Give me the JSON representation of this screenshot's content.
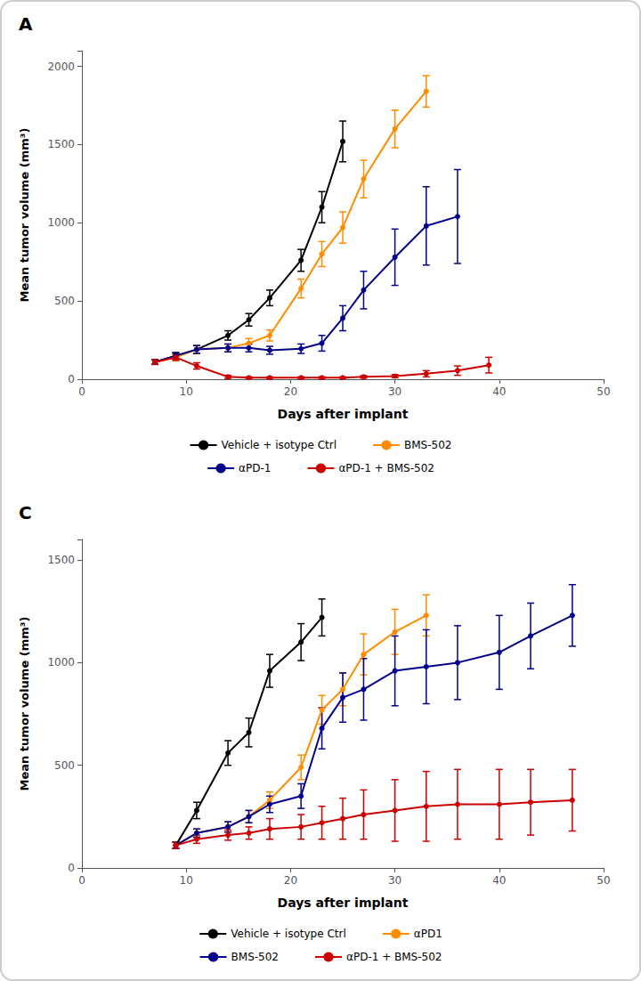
{
  "chart_data": [
    {
      "type": "line",
      "title": "A",
      "xlabel": "Days after implant",
      "ylabel": "Mean tumor volume (mm³)",
      "xlim": [
        0,
        50
      ],
      "ylim": [
        0,
        2100
      ],
      "xticks": [
        0,
        10,
        20,
        30,
        40,
        50
      ],
      "yticks": [
        0,
        500,
        1000,
        1500,
        2000
      ],
      "grid": false,
      "marker": "circle",
      "series": [
        {
          "name": "Vehicle + isotype Ctrl",
          "color": "#000000",
          "x": [
            7,
            9,
            11,
            14,
            16,
            18,
            21,
            23,
            25
          ],
          "values": [
            110,
            150,
            190,
            280,
            380,
            520,
            760,
            1100,
            1520
          ],
          "yerr": [
            15,
            20,
            25,
            30,
            40,
            50,
            70,
            100,
            130
          ]
        },
        {
          "name": "BMS-502",
          "color": "#FF8C00",
          "x": [
            7,
            9,
            11,
            14,
            16,
            18,
            21,
            23,
            25,
            27,
            30,
            33
          ],
          "values": [
            110,
            140,
            190,
            200,
            230,
            280,
            580,
            800,
            970,
            1280,
            1600,
            1840
          ],
          "yerr": [
            15,
            20,
            25,
            25,
            30,
            35,
            60,
            80,
            100,
            120,
            120,
            100
          ]
        },
        {
          "name": "αPD-1",
          "color": "#00008B",
          "x": [
            7,
            9,
            11,
            14,
            16,
            18,
            21,
            23,
            25,
            27,
            30,
            33,
            36
          ],
          "values": [
            110,
            150,
            190,
            200,
            200,
            185,
            195,
            230,
            390,
            570,
            780,
            980,
            1040
          ],
          "yerr": [
            15,
            20,
            25,
            25,
            25,
            25,
            30,
            50,
            80,
            120,
            180,
            250,
            300
          ]
        },
        {
          "name": "αPD-1 + BMS-502",
          "color": "#CC0000",
          "x": [
            7,
            9,
            11,
            14,
            16,
            18,
            21,
            23,
            25,
            27,
            30,
            33,
            36,
            39
          ],
          "values": [
            110,
            140,
            85,
            15,
            10,
            10,
            10,
            10,
            10,
            15,
            20,
            35,
            55,
            90
          ],
          "yerr": [
            15,
            20,
            20,
            10,
            5,
            5,
            5,
            5,
            5,
            8,
            10,
            20,
            30,
            50
          ]
        }
      ]
    },
    {
      "type": "line",
      "title": "C",
      "xlabel": "Days after implant",
      "ylabel": "Mean tumor volume (mm³)",
      "xlim": [
        0,
        50
      ],
      "ylim": [
        0,
        1600
      ],
      "xticks": [
        0,
        10,
        20,
        30,
        40,
        50
      ],
      "yticks": [
        0,
        500,
        1000,
        1500
      ],
      "grid": false,
      "marker": "circle",
      "series": [
        {
          "name": "Vehicle + isotype Ctrl",
          "color": "#000000",
          "x": [
            9,
            11,
            14,
            16,
            18,
            21,
            23
          ],
          "values": [
            110,
            280,
            560,
            660,
            960,
            1100,
            1220
          ],
          "yerr": [
            15,
            40,
            60,
            70,
            80,
            90,
            90
          ]
        },
        {
          "name": "αPD1",
          "color": "#FF8C00",
          "x": [
            9,
            11,
            14,
            16,
            18,
            21,
            23,
            25,
            27,
            30,
            33
          ],
          "values": [
            110,
            170,
            200,
            250,
            330,
            490,
            770,
            870,
            1040,
            1150,
            1230
          ],
          "yerr": [
            15,
            20,
            25,
            30,
            40,
            60,
            70,
            80,
            100,
            110,
            100
          ]
        },
        {
          "name": "BMS-502",
          "color": "#00008B",
          "x": [
            9,
            11,
            14,
            16,
            18,
            21,
            23,
            25,
            27,
            30,
            33,
            36,
            40,
            43,
            47
          ],
          "values": [
            110,
            170,
            200,
            250,
            310,
            350,
            680,
            830,
            870,
            960,
            980,
            1000,
            1050,
            1130,
            1230
          ],
          "yerr": [
            15,
            20,
            25,
            30,
            40,
            60,
            100,
            120,
            150,
            170,
            180,
            180,
            180,
            160,
            150
          ]
        },
        {
          "name": "αPD-1 + BMS-502",
          "color": "#CC0000",
          "x": [
            9,
            11,
            14,
            16,
            18,
            21,
            23,
            25,
            27,
            30,
            33,
            36,
            40,
            43,
            47
          ],
          "values": [
            110,
            140,
            160,
            170,
            190,
            200,
            220,
            240,
            260,
            280,
            300,
            310,
            310,
            320,
            330
          ],
          "yerr": [
            15,
            20,
            25,
            30,
            50,
            60,
            80,
            100,
            120,
            150,
            170,
            170,
            170,
            160,
            150
          ]
        }
      ]
    }
  ]
}
